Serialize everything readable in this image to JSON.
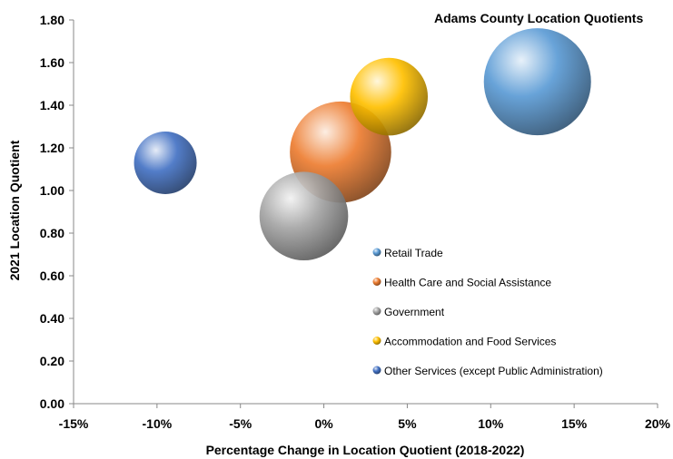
{
  "chart_data": {
    "type": "bubble",
    "title": "Adams County Location Quotients",
    "xlabel": "Percentage Change in Location Quotient (2018-2022)",
    "ylabel": "2021 Location Quotient",
    "xlim": [
      -0.15,
      0.2
    ],
    "ylim": [
      0.0,
      1.8
    ],
    "x_ticks": [
      "-15%",
      "-10%",
      "-5%",
      "0%",
      "5%",
      "10%",
      "15%",
      "20%"
    ],
    "y_ticks": [
      "0.00",
      "0.20",
      "0.40",
      "0.60",
      "0.80",
      "1.00",
      "1.20",
      "1.40",
      "1.60",
      "1.80"
    ],
    "grid": false,
    "legend_position": "bottom-right",
    "series": [
      {
        "name": "Retail Trade",
        "x": 0.128,
        "y": 1.51,
        "size": 1.9,
        "color": "#5b9bd5"
      },
      {
        "name": "Health Care and Social Assistance",
        "x": 0.01,
        "y": 1.18,
        "size": 1.7,
        "color": "#ed7d31"
      },
      {
        "name": "Government",
        "x": -0.012,
        "y": 0.88,
        "size": 1.3,
        "color": "#a5a5a5"
      },
      {
        "name": "Accommodation and Food Services",
        "x": 0.039,
        "y": 1.44,
        "size": 1.0,
        "color": "#ffc000"
      },
      {
        "name": "Other Services (except Public Administration)",
        "x": -0.095,
        "y": 1.13,
        "size": 0.65,
        "color": "#4472c4"
      }
    ]
  }
}
